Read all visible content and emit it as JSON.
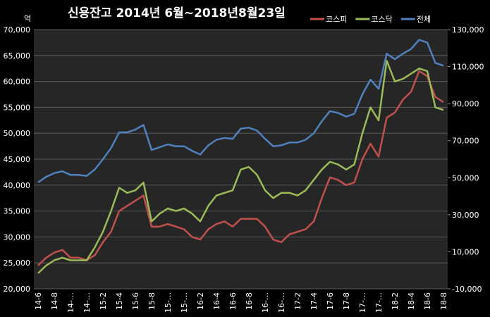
{
  "chart_data": {
    "type": "line",
    "title": "신용잔고 2014년 6월~2018년8월23일",
    "y_label": "억",
    "categories": [
      "14-6",
      null,
      "14-8",
      null,
      "14-…",
      null,
      "14-…",
      null,
      "15-2",
      null,
      "15-4",
      null,
      "15-6",
      null,
      "15-8",
      null,
      "15-…",
      null,
      "15-…",
      null,
      "16-2",
      null,
      "16-4",
      null,
      "16-6",
      null,
      "16-8",
      null,
      "16-…",
      null,
      "16-…",
      null,
      "17-2",
      null,
      "17-4",
      null,
      "17-6",
      null,
      "17-8",
      null,
      "17-…",
      null,
      "17-…",
      null,
      "18-2",
      null,
      "18-4",
      null,
      "18-6",
      null,
      "18-8"
    ],
    "series": [
      {
        "name": "코스피",
        "color": "#c0504d",
        "values": [
          24500,
          26000,
          27000,
          27500,
          26000,
          26000,
          25500,
          26500,
          29000,
          31000,
          35000,
          36000,
          37000,
          38000,
          32000,
          32000,
          32500,
          32000,
          31500,
          30000,
          29500,
          31500,
          32500,
          33000,
          32000,
          33500,
          33500,
          33500,
          32000,
          29500,
          29000,
          30500,
          31000,
          31500,
          33000,
          37500,
          41500,
          41000,
          40000,
          40500,
          45000,
          48000,
          45500,
          53000,
          54000,
          56500,
          58000,
          62000,
          61000,
          57000,
          56000
        ]
      },
      {
        "name": "코스닥",
        "color": "#9bbb59",
        "values": [
          23000,
          24500,
          25500,
          26000,
          25500,
          25500,
          25500,
          28000,
          31000,
          35000,
          39500,
          38500,
          39000,
          40500,
          33000,
          34500,
          35500,
          35000,
          35500,
          34500,
          33000,
          36000,
          38000,
          38500,
          39000,
          43000,
          43500,
          42000,
          39000,
          37500,
          38500,
          38500,
          38000,
          39000,
          41000,
          43000,
          44500,
          44000,
          43000,
          44000,
          50000,
          55000,
          52500,
          64000,
          60000,
          60500,
          61500,
          62500,
          62000,
          55000,
          54500
        ]
      },
      {
        "name": "전체",
        "color": "#4f81bd",
        "axis": "y2",
        "values": [
          47500,
          50500,
          52500,
          53500,
          51500,
          51500,
          51000,
          54500,
          60000,
          66000,
          74500,
          74500,
          76000,
          78500,
          65000,
          66500,
          68000,
          67000,
          67000,
          64500,
          62500,
          67500,
          70500,
          71500,
          71000,
          76500,
          77000,
          75500,
          71000,
          67000,
          67500,
          69000,
          69000,
          70500,
          74000,
          80500,
          86000,
          85000,
          83000,
          84500,
          95000,
          103000,
          98000,
          117000,
          114000,
          117000,
          119500,
          124500,
          123000,
          112000,
          110500
        ]
      }
    ],
    "ylim": [
      20000,
      70000
    ],
    "yticks": [
      {
        "value": 20000,
        "label": "20,000"
      },
      {
        "value": 25000,
        "label": "25,000"
      },
      {
        "value": 30000,
        "label": "30,000"
      },
      {
        "value": 35000,
        "label": "35,000"
      },
      {
        "value": 40000,
        "label": "40,000"
      },
      {
        "value": 45000,
        "label": "45,000"
      },
      {
        "value": 50000,
        "label": "50,000"
      },
      {
        "value": 55000,
        "label": "55,000"
      },
      {
        "value": 60000,
        "label": "60,000"
      },
      {
        "value": 65000,
        "label": "65,000"
      },
      {
        "value": 70000,
        "label": "70,000"
      }
    ],
    "y2lim": [
      -10000,
      130000
    ],
    "y2ticks": [
      {
        "value": -10000,
        "label": "-10,000"
      },
      {
        "value": 10000,
        "label": "10,000"
      },
      {
        "value": 30000,
        "label": "30,000"
      },
      {
        "value": 50000,
        "label": "50,000"
      },
      {
        "value": 70000,
        "label": "70,000"
      },
      {
        "value": 90000,
        "label": "90,000"
      },
      {
        "value": 110000,
        "label": "110,000"
      },
      {
        "value": 130000,
        "label": "130,000"
      }
    ],
    "grid": true,
    "legend": "top-right"
  }
}
